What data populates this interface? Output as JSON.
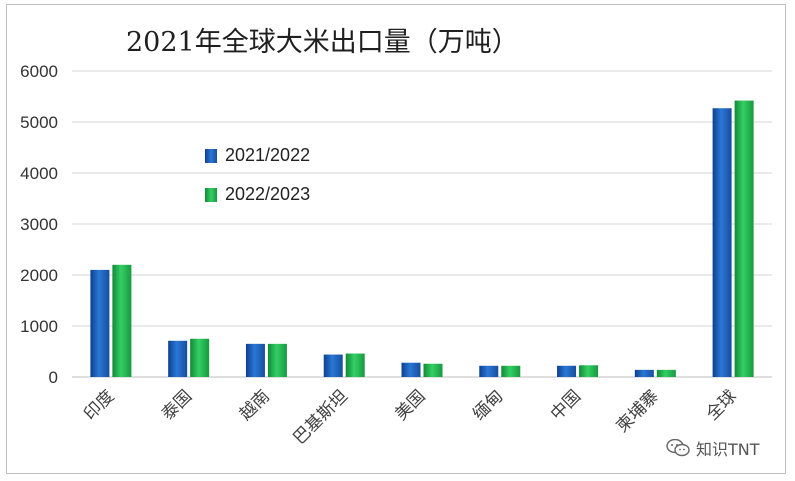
{
  "chart_data": {
    "type": "bar",
    "title": "2021年全球大米出口量（万吨）",
    "xlabel": "",
    "ylabel": "",
    "ylim": [
      0,
      6000
    ],
    "yticks": [
      0,
      1000,
      2000,
      3000,
      4000,
      5000,
      6000
    ],
    "grid": true,
    "legend_position": "upper-left inside",
    "categories": [
      "印度",
      "泰国",
      "越南",
      "巴基斯坦",
      "美国",
      "缅甸",
      "中国",
      "柬埔寨",
      "全球"
    ],
    "series": [
      {
        "name": "2021/2022",
        "color": "#1f5fb8",
        "values": [
          2100,
          710,
          650,
          440,
          280,
          220,
          220,
          140,
          5270
        ]
      },
      {
        "name": "2022/2023",
        "color": "#22b04b",
        "values": [
          2200,
          750,
          650,
          460,
          260,
          220,
          230,
          140,
          5420
        ]
      }
    ]
  },
  "watermark": {
    "icon": "wechat-icon",
    "text": "知识TNT"
  }
}
